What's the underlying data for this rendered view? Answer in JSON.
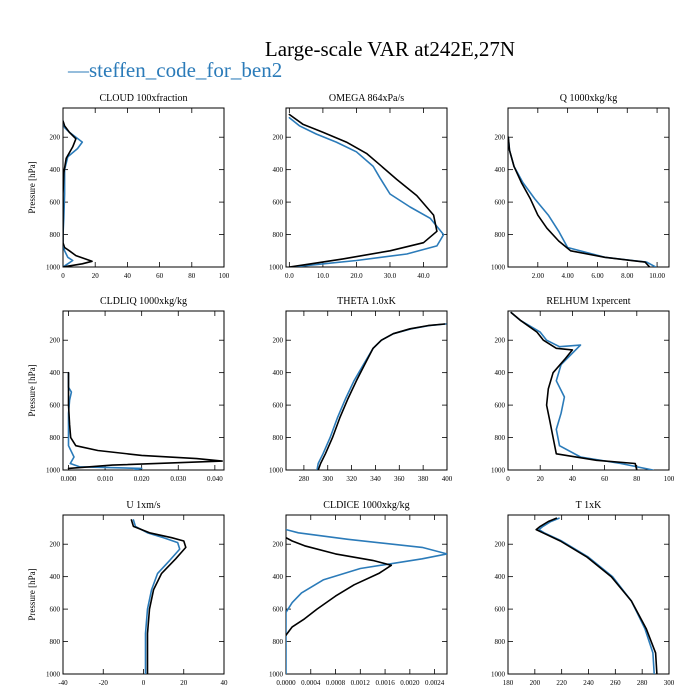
{
  "figure": {
    "title": "Large-scale VAR at242E,27N",
    "legend_label": "steffen_code_for_ben2",
    "legend_prefix": "—",
    "colors": {
      "series_1": "#2b7bb9",
      "series_2": "#000000"
    }
  },
  "chart_data": [
    {
      "type": "line",
      "title": "CLOUD  100xfraction",
      "ylabel": "Pressure [hPa]",
      "xlim": [
        0,
        100
      ],
      "ylim": [
        1000,
        20
      ],
      "y_inverted": true,
      "xticks": [
        0,
        20,
        40,
        60,
        80,
        100
      ],
      "xtick_labels": [
        "0",
        "20",
        "40",
        "60",
        "80",
        "100"
      ],
      "yticks": [
        200,
        400,
        600,
        800,
        1000
      ],
      "ytick_labels": [
        "200",
        "400",
        "600",
        "800",
        "1000"
      ],
      "series": [
        {
          "name": "steffen_code_for_ben2",
          "color": "#2b7bb9",
          "x": [
            0,
            1,
            4,
            12,
            9,
            3,
            1,
            1,
            0.5,
            0,
            0,
            1,
            3,
            6,
            3,
            0
          ],
          "y": [
            100,
            140,
            170,
            230,
            270,
            320,
            400,
            550,
            700,
            800,
            850,
            900,
            940,
            960,
            980,
            1000
          ]
        },
        {
          "series_ref": 2,
          "color": "#000000",
          "x": [
            0,
            1,
            4,
            8,
            6,
            2,
            0.5,
            0,
            0,
            0,
            1,
            4,
            8,
            18,
            12,
            3,
            0
          ],
          "y": [
            100,
            130,
            170,
            210,
            260,
            330,
            420,
            550,
            700,
            850,
            880,
            900,
            930,
            965,
            980,
            995,
            1000
          ]
        }
      ]
    },
    {
      "type": "line",
      "title": "OMEGA  864xPa/s",
      "ylabel": "",
      "xlim": [
        -1,
        47
      ],
      "ylim": [
        1000,
        20
      ],
      "y_inverted": true,
      "xticks": [
        0,
        10,
        20,
        30,
        40
      ],
      "xtick_labels": [
        "0.0",
        "10.0",
        "20.0",
        "30.0",
        "40.0"
      ],
      "yticks": [
        200,
        400,
        600,
        800,
        1000
      ],
      "ytick_labels": [
        "200",
        "400",
        "600",
        "800",
        "1000"
      ],
      "series": [
        {
          "name": "steffen_code_for_ben2",
          "color": "#2b7bb9",
          "x": [
            0,
            3,
            8,
            14,
            20,
            25,
            27,
            30,
            36,
            42,
            46,
            44,
            35,
            20,
            8,
            1
          ],
          "y": [
            80,
            130,
            180,
            230,
            290,
            380,
            450,
            550,
            630,
            700,
            800,
            870,
            920,
            960,
            985,
            1000
          ]
        },
        {
          "series_ref": 2,
          "color": "#000000",
          "x": [
            0,
            4,
            10,
            17,
            23,
            27,
            32,
            38,
            43,
            44,
            40,
            30,
            16,
            5,
            0
          ],
          "y": [
            60,
            120,
            170,
            230,
            300,
            370,
            460,
            560,
            680,
            780,
            850,
            900,
            950,
            985,
            1000
          ]
        }
      ]
    },
    {
      "type": "line",
      "title": "Q  1000xkg/kg",
      "ylabel": "",
      "xlim": [
        0,
        10.8
      ],
      "ylim": [
        1000,
        20
      ],
      "y_inverted": true,
      "xticks": [
        2,
        4,
        6,
        8,
        10
      ],
      "xtick_labels": [
        "2.00",
        "4.00",
        "6.00",
        "8.00",
        "10.00"
      ],
      "yticks": [
        200,
        400,
        600,
        800,
        1000
      ],
      "ytick_labels": [
        "200",
        "400",
        "600",
        "800",
        "1000"
      ],
      "series": [
        {
          "name": "steffen_code_for_ben2",
          "color": "#2b7bb9",
          "x": [
            0.02,
            0.1,
            0.4,
            1.0,
            1.8,
            2.7,
            3.4,
            4.0,
            6.5,
            9.3,
            9.9
          ],
          "y": [
            200,
            280,
            380,
            480,
            580,
            680,
            780,
            880,
            940,
            970,
            1000
          ]
        },
        {
          "series_ref": 2,
          "color": "#000000",
          "x": [
            0.02,
            0.1,
            0.4,
            0.9,
            1.5,
            2.0,
            2.6,
            3.4,
            4.2,
            6.5,
            9.2,
            9.5
          ],
          "y": [
            200,
            280,
            380,
            480,
            580,
            680,
            760,
            840,
            900,
            940,
            970,
            1000
          ]
        }
      ]
    },
    {
      "type": "line",
      "title": "CLDLIQ  1000xkg/kg",
      "ylabel": "Pressure [hPa]",
      "xlim": [
        -0.0015,
        0.0425
      ],
      "ylim": [
        1000,
        20
      ],
      "y_inverted": true,
      "xticks": [
        0,
        0.01,
        0.02,
        0.03,
        0.04
      ],
      "xtick_labels": [
        "0.000",
        "0.010",
        "0.020",
        "0.030",
        "0.040"
      ],
      "yticks": [
        200,
        400,
        600,
        800,
        1000
      ],
      "ytick_labels": [
        "200",
        "400",
        "600",
        "800",
        "1000"
      ],
      "series": [
        {
          "name": "steffen_code_for_ben2",
          "color": "#2b7bb9",
          "x": [
            0,
            0,
            0.0008,
            0.0003,
            0,
            0,
            0.0015,
            0.0005,
            0.003,
            0.02,
            0.018
          ],
          "y": [
            400,
            490,
            520,
            570,
            650,
            850,
            920,
            960,
            980,
            990,
            1000
          ]
        },
        {
          "series_ref": 2,
          "color": "#000000",
          "x": [
            0,
            0,
            0.0003,
            0.0006,
            0.002,
            0.008,
            0.02,
            0.035,
            0.042,
            0.03,
            0.012,
            0
          ],
          "y": [
            400,
            600,
            720,
            800,
            850,
            880,
            910,
            930,
            945,
            955,
            970,
            990
          ]
        }
      ]
    },
    {
      "type": "line",
      "title": "THETA  1.0xK",
      "ylabel": "",
      "xlim": [
        265,
        400
      ],
      "ylim": [
        1000,
        20
      ],
      "y_inverted": true,
      "xticks": [
        280,
        300,
        320,
        340,
        360,
        380,
        400
      ],
      "xtick_labels": [
        "280",
        "300",
        "320",
        "340",
        "360",
        "380",
        "400"
      ],
      "yticks": [
        200,
        400,
        600,
        800,
        1000
      ],
      "ytick_labels": [
        "200",
        "400",
        "600",
        "800",
        "1000"
      ],
      "series": [
        {
          "name": "steffen_code_for_ben2",
          "color": "#2b7bb9",
          "x": [
            399,
            385,
            370,
            355,
            345,
            338,
            330,
            322,
            315,
            308,
            302,
            296,
            292,
            291
          ],
          "y": [
            100,
            110,
            130,
            160,
            200,
            250,
            350,
            450,
            560,
            680,
            800,
            900,
            960,
            1000
          ]
        },
        {
          "series_ref": 2,
          "color": "#000000",
          "x": [
            398,
            384,
            369,
            355,
            345,
            338,
            331,
            324,
            317,
            310,
            304,
            298,
            294,
            292
          ],
          "y": [
            100,
            110,
            130,
            160,
            200,
            250,
            350,
            450,
            560,
            680,
            800,
            900,
            960,
            1000
          ]
        }
      ]
    },
    {
      "type": "line",
      "title": "RELHUM  1xpercent",
      "ylabel": "",
      "xlim": [
        0,
        100
      ],
      "ylim": [
        1000,
        20
      ],
      "y_inverted": true,
      "xticks": [
        0,
        20,
        40,
        60,
        80,
        100
      ],
      "xtick_labels": [
        "0",
        "20",
        "40",
        "60",
        "80",
        "100"
      ],
      "yticks": [
        200,
        400,
        600,
        800,
        1000
      ],
      "ytick_labels": [
        "200",
        "400",
        "600",
        "800",
        "1000"
      ],
      "series": [
        {
          "name": "steffen_code_for_ben2",
          "color": "#2b7bb9",
          "x": [
            2,
            8,
            20,
            24,
            32,
            45,
            40,
            33,
            30,
            35,
            33,
            30,
            32,
            45,
            70,
            90
          ],
          "y": [
            30,
            80,
            150,
            200,
            240,
            230,
            280,
            350,
            450,
            550,
            650,
            750,
            850,
            920,
            960,
            1000
          ]
        },
        {
          "series_ref": 2,
          "color": "#000000",
          "x": [
            2,
            8,
            18,
            22,
            30,
            40,
            35,
            28,
            25,
            24,
            26,
            28,
            30,
            55,
            79,
            80
          ],
          "y": [
            30,
            80,
            150,
            200,
            250,
            260,
            320,
            400,
            500,
            600,
            700,
            800,
            900,
            940,
            960,
            1000
          ]
        }
      ]
    },
    {
      "type": "line",
      "title": "U  1xm/s",
      "ylabel": "Pressure [hPa]",
      "xlim": [
        -40,
        40
      ],
      "ylim": [
        1000,
        20
      ],
      "y_inverted": true,
      "xticks": [
        -40,
        -20,
        0,
        20,
        40
      ],
      "xtick_labels": [
        "-40",
        "-20",
        "0",
        "20",
        "40"
      ],
      "yticks": [
        200,
        400,
        600,
        800,
        1000
      ],
      "ytick_labels": [
        "200",
        "400",
        "600",
        "800",
        "1000"
      ],
      "series": [
        {
          "name": "steffen_code_for_ben2",
          "color": "#2b7bb9",
          "x": [
            -5,
            -4,
            2,
            10,
            17,
            18,
            13,
            7,
            4,
            2,
            1,
            1,
            1
          ],
          "y": [
            50,
            90,
            130,
            160,
            190,
            230,
            300,
            380,
            480,
            600,
            750,
            900,
            1000
          ]
        },
        {
          "series_ref": 2,
          "color": "#000000",
          "x": [
            -6,
            -5,
            3,
            14,
            20,
            21,
            16,
            9,
            5,
            3,
            2,
            2,
            2
          ],
          "y": [
            50,
            90,
            130,
            160,
            180,
            220,
            290,
            380,
            480,
            600,
            750,
            900,
            1000
          ]
        }
      ]
    },
    {
      "type": "line",
      "title": "CLDICE  1000xkg/kg",
      "ylabel": "",
      "xlim": [
        0,
        0.0026
      ],
      "ylim": [
        1000,
        20
      ],
      "y_inverted": true,
      "xticks": [
        0,
        0.0004,
        0.0008,
        0.0012,
        0.0016,
        0.002,
        0.0024
      ],
      "xtick_labels": [
        "0.0000",
        "0.0004",
        "0.0008",
        "0.0012",
        "0.0016",
        "0.0020",
        "0.0024"
      ],
      "yticks": [
        200,
        400,
        600,
        800,
        1000
      ],
      "ytick_labels": [
        "200",
        "400",
        "600",
        "800",
        "1000"
      ],
      "series": [
        {
          "name": "steffen_code_for_ben2",
          "color": "#2b7bb9",
          "x": [
            0,
            0.0002,
            0.001,
            0.0022,
            0.0026,
            0.0022,
            0.0012,
            0.0006,
            0.00025,
            0.0001,
            0,
            0
          ],
          "y": [
            110,
            130,
            170,
            220,
            260,
            290,
            350,
            420,
            500,
            560,
            620,
            1000
          ]
        },
        {
          "series_ref": 2,
          "color": "#000000",
          "x": [
            0,
            0.0001,
            0.0003,
            0.0008,
            0.0014,
            0.0017,
            0.0015,
            0.0011,
            0.0008,
            0.0005,
            0.0003,
            0.0001,
            0
          ],
          "y": [
            160,
            180,
            210,
            260,
            300,
            330,
            380,
            450,
            520,
            600,
            660,
            710,
            760
          ]
        }
      ]
    },
    {
      "type": "line",
      "title": "T  1xK",
      "ylabel": "",
      "xlim": [
        180,
        300
      ],
      "ylim": [
        1000,
        20
      ],
      "y_inverted": true,
      "xticks": [
        180,
        200,
        220,
        240,
        260,
        280,
        300
      ],
      "xtick_labels": [
        "180",
        "200",
        "220",
        "240",
        "260",
        "280",
        "300"
      ],
      "yticks": [
        200,
        400,
        600,
        800,
        1000
      ],
      "ytick_labels": [
        "200",
        "400",
        "600",
        "800",
        "1000"
      ],
      "series": [
        {
          "name": "steffen_code_for_ben2",
          "color": "#2b7bb9",
          "x": [
            218,
            212,
            206,
            203,
            207,
            220,
            240,
            258,
            272,
            282,
            288,
            289
          ],
          "y": [
            40,
            60,
            90,
            110,
            130,
            180,
            280,
            400,
            550,
            720,
            870,
            1000
          ]
        },
        {
          "series_ref": 2,
          "color": "#000000",
          "x": [
            216,
            210,
            204,
            201,
            206,
            219,
            239,
            257,
            272,
            283,
            290,
            291
          ],
          "y": [
            40,
            60,
            90,
            110,
            130,
            180,
            280,
            400,
            550,
            720,
            870,
            1000
          ]
        }
      ]
    }
  ]
}
